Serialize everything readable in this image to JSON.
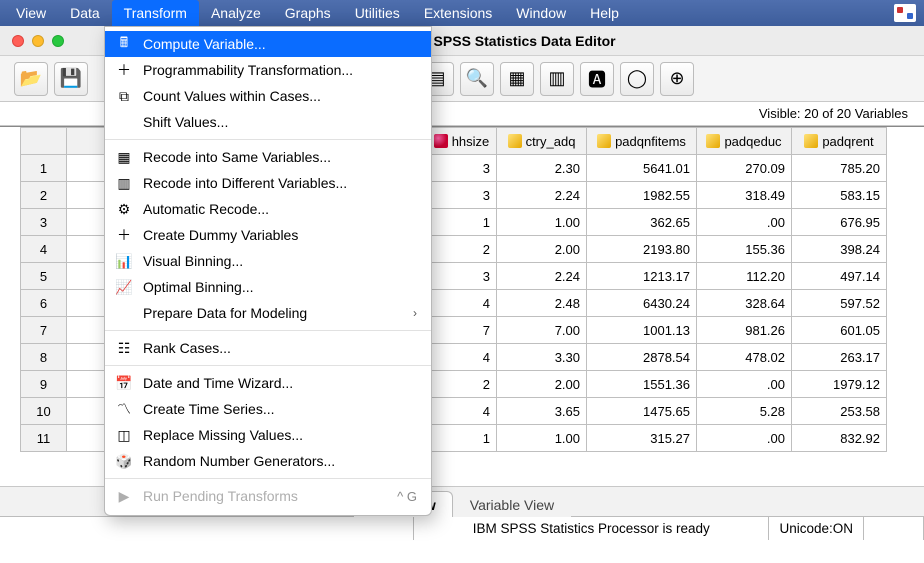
{
  "menubar": {
    "items": [
      "View",
      "Data",
      "Transform",
      "Analyze",
      "Graphs",
      "Utilities",
      "Extensions",
      "Window",
      "Help"
    ],
    "active_index": 2
  },
  "window": {
    "title": "IBM SPSS Statistics Data Editor"
  },
  "visible_bar": "Visible: 20 of 20 Variables",
  "dropdown": {
    "groups": [
      [
        {
          "label": "Compute Variable...",
          "icon": "calc",
          "highlight": true
        },
        {
          "label": "Programmability Transformation...",
          "icon": "plus"
        },
        {
          "label": "Count Values within Cases...",
          "icon": "count"
        },
        {
          "label": "Shift Values...",
          "icon": ""
        }
      ],
      [
        {
          "label": "Recode into Same Variables...",
          "icon": "recode"
        },
        {
          "label": "Recode into Different Variables...",
          "icon": "recode2"
        },
        {
          "label": "Automatic Recode...",
          "icon": "auto"
        },
        {
          "label": "Create Dummy Variables",
          "icon": "plus"
        },
        {
          "label": "Visual Binning...",
          "icon": "vbin"
        },
        {
          "label": "Optimal Binning...",
          "icon": "obin"
        },
        {
          "label": "Prepare Data for Modeling",
          "icon": "",
          "submenu": true
        }
      ],
      [
        {
          "label": "Rank Cases...",
          "icon": "rank"
        }
      ],
      [
        {
          "label": "Date and Time Wizard...",
          "icon": "calendar"
        },
        {
          "label": "Create Time Series...",
          "icon": "tseries"
        },
        {
          "label": "Replace Missing Values...",
          "icon": "missing"
        },
        {
          "label": "Random Number Generators...",
          "icon": "rng"
        }
      ],
      [
        {
          "label": "Run Pending Transforms",
          "icon": "run",
          "disabled": true,
          "shortcut": "^ G"
        }
      ]
    ]
  },
  "grid": {
    "columns": [
      {
        "name": "hhsize",
        "icon": "hh",
        "width": 70
      },
      {
        "name": "ctry_adq",
        "icon": "ruler",
        "width": 90
      },
      {
        "name": "padqnfitems",
        "icon": "ruler",
        "width": 110
      },
      {
        "name": "padqeduc",
        "icon": "ruler",
        "width": 95
      },
      {
        "name": "padqrent",
        "icon": "ruler",
        "width": 95
      }
    ],
    "rows": [
      [
        "3",
        "2.30",
        "5641.01",
        "270.09",
        "785.20"
      ],
      [
        "3",
        "2.24",
        "1982.55",
        "318.49",
        "583.15"
      ],
      [
        "1",
        "1.00",
        "362.65",
        ".00",
        "676.95"
      ],
      [
        "2",
        "2.00",
        "2193.80",
        "155.36",
        "398.24"
      ],
      [
        "3",
        "2.24",
        "1213.17",
        "112.20",
        "497.14"
      ],
      [
        "4",
        "2.48",
        "6430.24",
        "328.64",
        "597.52"
      ],
      [
        "7",
        "7.00",
        "1001.13",
        "981.26",
        "601.05"
      ],
      [
        "4",
        "3.30",
        "2878.54",
        "478.02",
        "263.17"
      ],
      [
        "2",
        "2.00",
        "1551.36",
        ".00",
        "1979.12"
      ],
      [
        "4",
        "3.65",
        "1475.65",
        "5.28",
        "253.58"
      ],
      [
        "1",
        "1.00",
        "315.27",
        ".00",
        "832.92"
      ]
    ],
    "visible_row_count": 11
  },
  "tabs": {
    "active": "Data View",
    "inactive": "Variable View"
  },
  "status": {
    "processor": "IBM SPSS Statistics Processor is ready",
    "unicode": "Unicode:ON"
  },
  "icons": {
    "calc": "🖩",
    "plus": "＋",
    "count": "⧉",
    "recode": "▦",
    "recode2": "▥",
    "auto": "⚙",
    "vbin": "📊",
    "obin": "📈",
    "rank": "☷",
    "calendar": "📅",
    "tseries": "〽",
    "missing": "◫",
    "rng": "🎲",
    "run": "▶"
  }
}
